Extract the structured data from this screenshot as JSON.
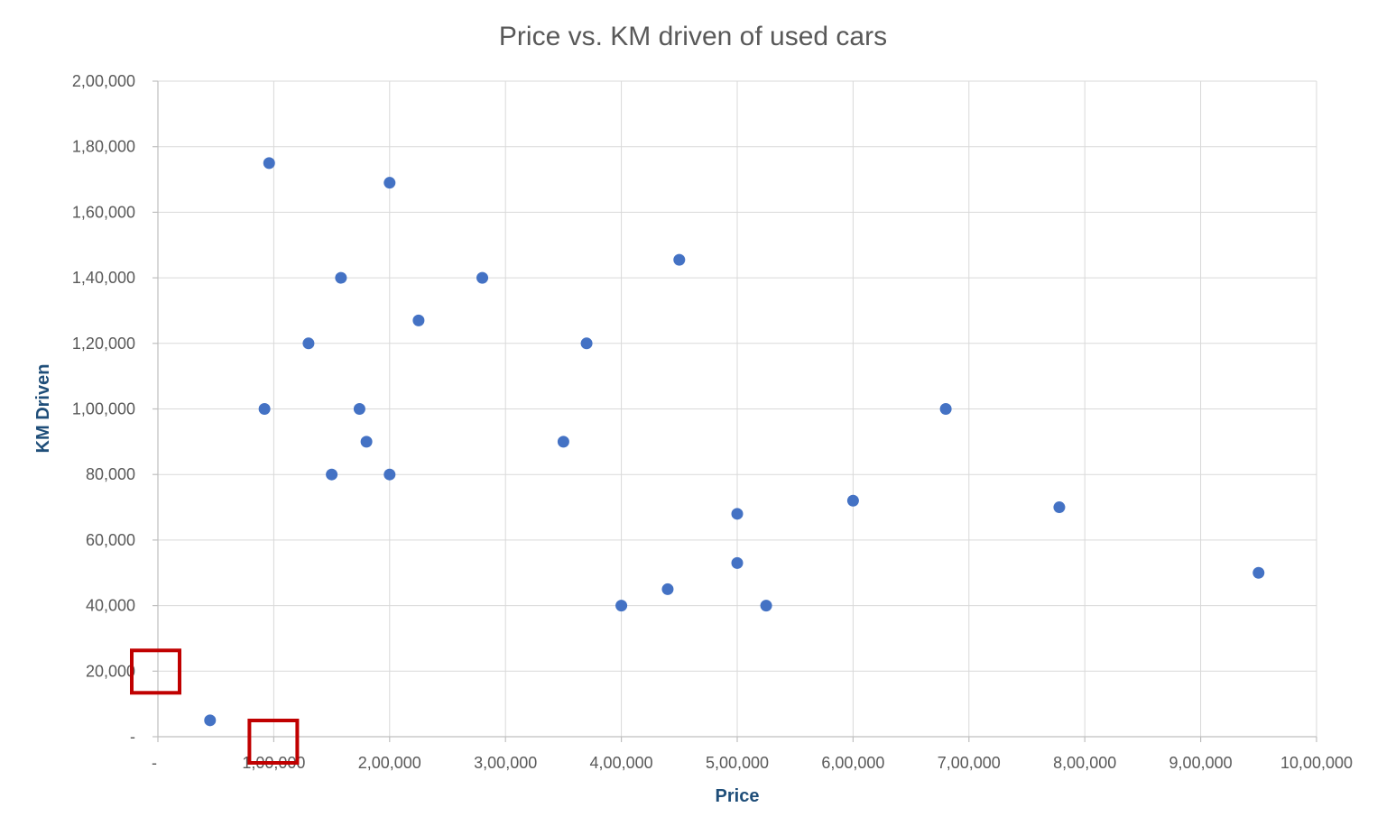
{
  "chart_data": {
    "type": "scatter",
    "title": "Price vs. KM driven of used cars",
    "xlabel": "Price",
    "ylabel": "KM Driven",
    "xlim": [
      0,
      1000000
    ],
    "ylim": [
      0,
      200000
    ],
    "x_ticks": [
      0,
      100000,
      200000,
      300000,
      400000,
      500000,
      600000,
      700000,
      800000,
      900000,
      1000000
    ],
    "x_tick_labels": [
      "-",
      "1,00,000",
      "2,00,000",
      "3,00,000",
      "4,00,000",
      "5,00,000",
      "6,00,000",
      "7,00,000",
      "8,00,000",
      "9,00,000",
      "10,00,000"
    ],
    "y_ticks": [
      0,
      20000,
      40000,
      60000,
      80000,
      100000,
      120000,
      140000,
      160000,
      180000,
      200000
    ],
    "y_tick_labels": [
      "-",
      "20,000",
      "40,000",
      "60,000",
      "80,000",
      "1,00,000",
      "1,20,000",
      "1,40,000",
      "1,60,000",
      "1,80,000",
      "2,00,000"
    ],
    "grid": true,
    "legend": "none",
    "marker_color": "#4472c4",
    "highlight_color": "#c00000",
    "highlights": [
      {
        "target": "y_tick_label",
        "index": 1
      },
      {
        "target": "x_tick_label",
        "index": 1
      }
    ],
    "series": [
      {
        "points": [
          {
            "x": 45000,
            "y": 5000
          },
          {
            "x": 92000,
            "y": 100000
          },
          {
            "x": 96000,
            "y": 175000
          },
          {
            "x": 130000,
            "y": 120000
          },
          {
            "x": 150000,
            "y": 80000
          },
          {
            "x": 158000,
            "y": 140000
          },
          {
            "x": 174000,
            "y": 100000
          },
          {
            "x": 180000,
            "y": 90000
          },
          {
            "x": 200000,
            "y": 169000
          },
          {
            "x": 200000,
            "y": 80000
          },
          {
            "x": 225000,
            "y": 127000
          },
          {
            "x": 280000,
            "y": 140000
          },
          {
            "x": 350000,
            "y": 90000
          },
          {
            "x": 370000,
            "y": 120000
          },
          {
            "x": 400000,
            "y": 40000
          },
          {
            "x": 440000,
            "y": 45000
          },
          {
            "x": 450000,
            "y": 145500
          },
          {
            "x": 500000,
            "y": 68000
          },
          {
            "x": 500000,
            "y": 53000
          },
          {
            "x": 525000,
            "y": 40000
          },
          {
            "x": 600000,
            "y": 72000
          },
          {
            "x": 680000,
            "y": 100000
          },
          {
            "x": 778000,
            "y": 70000
          },
          {
            "x": 950000,
            "y": 50000
          }
        ]
      }
    ]
  }
}
